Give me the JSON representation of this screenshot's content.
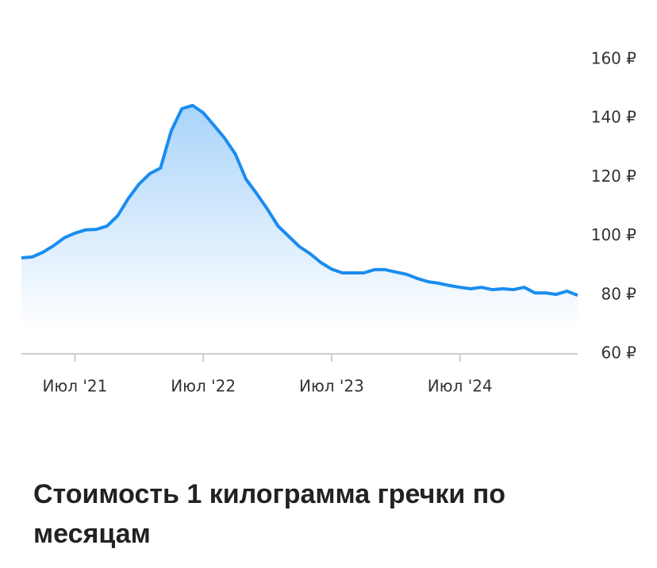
{
  "chart_data": {
    "type": "area",
    "title": "Стоимость 1 килограмма гречки по месяцам",
    "categories": [
      null,
      null,
      null,
      null,
      null,
      "Июл '21",
      null,
      null,
      null,
      null,
      null,
      null,
      null,
      null,
      null,
      null,
      null,
      "Июл '22",
      null,
      null,
      null,
      null,
      null,
      null,
      null,
      null,
      null,
      null,
      null,
      "Июл '23",
      null,
      null,
      null,
      null,
      null,
      null,
      null,
      null,
      null,
      null,
      null,
      "Июл '24",
      null,
      null,
      null,
      null,
      null,
      null,
      null,
      null,
      null,
      null,
      null
    ],
    "values": [
      92.6,
      92.9,
      94.5,
      96.7,
      99.4,
      101,
      102.1,
      102.3,
      103.4,
      106.9,
      112.8,
      117.7,
      121.2,
      123.1,
      135.7,
      143.3,
      144.4,
      141.9,
      137.6,
      133.3,
      127.9,
      119.3,
      114.4,
      109.1,
      103.4,
      99.9,
      96.4,
      94,
      91,
      88.8,
      87.5,
      87.5,
      87.5,
      88.6,
      88.6,
      87.8,
      87,
      85.6,
      84.5,
      84,
      83.2,
      82.6,
      82.1,
      82.6,
      81.8,
      82.1,
      81.8,
      82.6,
      80.7,
      80.7,
      80.2,
      81.3,
      79.9
    ],
    "color": "#1a8cf0",
    "ylim": [
      60,
      160
    ],
    "yticks": [
      {
        "value": 60,
        "label": "60 ₽"
      },
      {
        "value": 80,
        "label": "80 ₽"
      },
      {
        "value": 100,
        "label": "100 ₽"
      },
      {
        "value": 120,
        "label": "120 ₽"
      },
      {
        "value": 140,
        "label": "140 ₽"
      },
      {
        "value": 160,
        "label": "160 ₽"
      }
    ],
    "grid": false
  }
}
